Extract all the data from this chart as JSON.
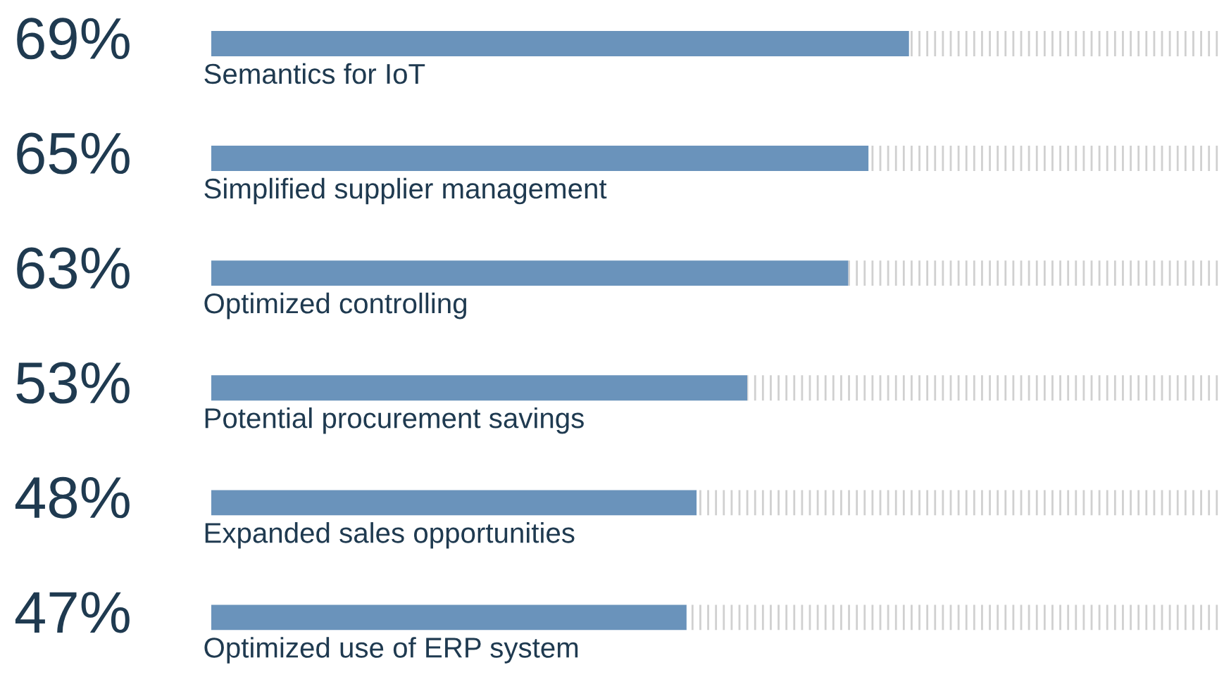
{
  "chart_data": {
    "type": "bar",
    "orientation": "horizontal",
    "stacked": true,
    "categories": [
      "Semantics for IoT",
      "Simplified supplier management",
      "Optimized controlling",
      "Potential procurement savings",
      "Expanded sales opportunities",
      "Optimized use of ERP system"
    ],
    "series": [
      {
        "color": "#6a93bb",
        "values": [
          69,
          65,
          63,
          53,
          48,
          47
        ],
        "value_labels": [
          "69%",
          "65%",
          "63%",
          "53%",
          "48%",
          "47%"
        ]
      },
      {
        "color": "#d0d0d0",
        "values": [
          31,
          35,
          37,
          47,
          52,
          53
        ]
      }
    ],
    "xlim": [
      0,
      100
    ]
  }
}
